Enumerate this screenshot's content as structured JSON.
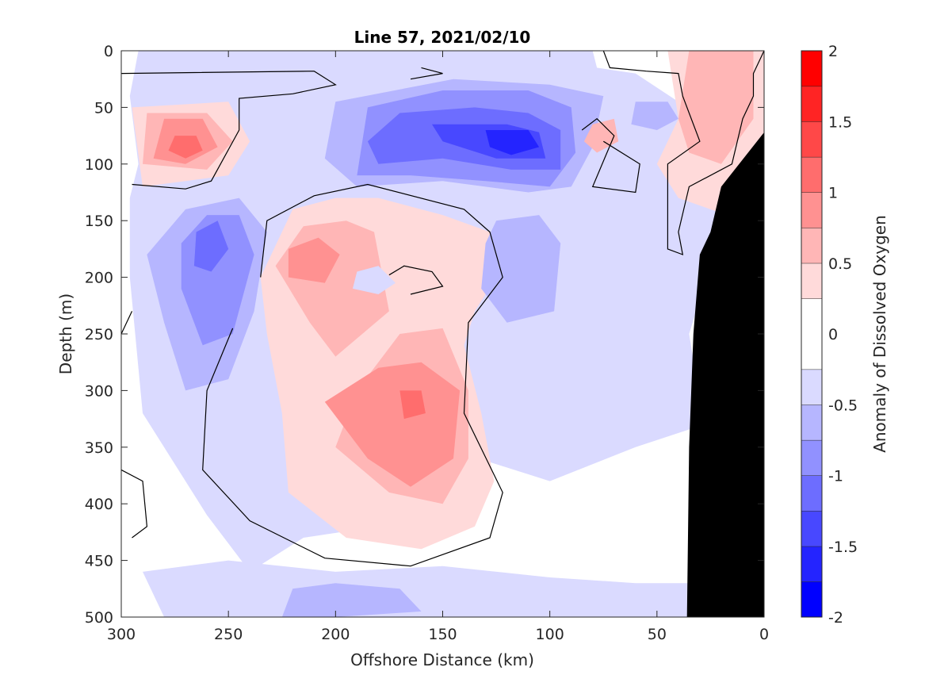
{
  "chart_data": {
    "type": "contour",
    "title": "Line 57, 2021/02/10",
    "xlabel": "Offshore Distance (km)",
    "ylabel": "Depth (m)",
    "xlim": [
      300,
      0
    ],
    "ylim": [
      500,
      0
    ],
    "x_reversed": true,
    "y_reversed": true,
    "x_ticks": [
      300,
      250,
      200,
      150,
      100,
      50,
      0
    ],
    "y_ticks": [
      0,
      50,
      100,
      150,
      200,
      250,
      300,
      350,
      400,
      450,
      500
    ],
    "colorbar": {
      "label": "Anomaly of Dissolved Oxygen",
      "range": [
        -2,
        2
      ],
      "ticks": [
        2,
        1.5,
        1,
        0.5,
        0,
        -0.5,
        -1,
        -1.5,
        -2
      ],
      "levels": [
        -2,
        -1.75,
        -1.5,
        -1.25,
        -1,
        -0.75,
        -0.5,
        -0.25,
        0.25,
        0.5,
        0.75,
        1,
        1.25,
        1.5,
        1.75,
        2
      ],
      "colors": [
        "#0000ff",
        "#2424ff",
        "#4848ff",
        "#6d6dff",
        "#9191ff",
        "#b6b6ff",
        "#dadaff",
        "#ffffff",
        "#ffdada",
        "#ffb6b6",
        "#ff9191",
        "#ff6d6d",
        "#ff4848",
        "#ff2424",
        "#ff0000"
      ]
    },
    "regions": [
      {
        "level": -0.5,
        "points": [
          [
            292,
            0
          ],
          [
            80,
            0
          ],
          [
            78,
            15
          ],
          [
            60,
            20
          ],
          [
            40,
            45
          ],
          [
            35,
            90
          ],
          [
            18,
            130
          ],
          [
            22,
            170
          ],
          [
            35,
            250
          ],
          [
            28,
            330
          ],
          [
            60,
            350
          ],
          [
            100,
            380
          ],
          [
            150,
            350
          ],
          [
            180,
            420
          ],
          [
            215,
            430
          ],
          [
            240,
            460
          ],
          [
            260,
            410
          ],
          [
            290,
            320
          ],
          [
            296,
            200
          ],
          [
            296,
            130
          ],
          [
            292,
            100
          ],
          [
            296,
            40
          ]
        ]
      },
      {
        "level": -0.5,
        "points": [
          [
            290,
            460
          ],
          [
            250,
            450
          ],
          [
            200,
            460
          ],
          [
            150,
            455
          ],
          [
            100,
            465
          ],
          [
            60,
            470
          ],
          [
            35,
            470
          ],
          [
            33,
            500
          ],
          [
            280,
            500
          ]
        ]
      },
      {
        "level": 0.25,
        "points": [
          [
            220,
            140
          ],
          [
            200,
            130
          ],
          [
            180,
            130
          ],
          [
            150,
            145
          ],
          [
            128,
            160
          ],
          [
            125,
            200
          ],
          [
            135,
            230
          ],
          [
            140,
            260
          ],
          [
            132,
            320
          ],
          [
            126,
            380
          ],
          [
            135,
            420
          ],
          [
            160,
            440
          ],
          [
            195,
            430
          ],
          [
            222,
            390
          ],
          [
            225,
            320
          ],
          [
            232,
            250
          ],
          [
            235,
            200
          ]
        ]
      },
      {
        "level": 0.25,
        "points": [
          [
            295,
            50
          ],
          [
            250,
            45
          ],
          [
            240,
            80
          ],
          [
            250,
            110
          ],
          [
            290,
            120
          ]
        ]
      },
      {
        "level": 0.25,
        "points": [
          [
            45,
            0
          ],
          [
            0,
            0
          ],
          [
            0,
            40
          ],
          [
            -5,
            120
          ],
          [
            10,
            150
          ],
          [
            40,
            130
          ],
          [
            50,
            100
          ],
          [
            40,
            60
          ]
        ]
      },
      {
        "level": 0.5,
        "points": [
          [
            215,
            155
          ],
          [
            195,
            150
          ],
          [
            182,
            160
          ],
          [
            175,
            230
          ],
          [
            200,
            270
          ],
          [
            212,
            240
          ],
          [
            228,
            190
          ]
        ]
      },
      {
        "level": 0.5,
        "points": [
          [
            190,
            300
          ],
          [
            170,
            250
          ],
          [
            150,
            245
          ],
          [
            138,
            300
          ],
          [
            138,
            360
          ],
          [
            150,
            400
          ],
          [
            175,
            390
          ],
          [
            200,
            350
          ]
        ]
      },
      {
        "level": 0.5,
        "points": [
          [
            288,
            55
          ],
          [
            260,
            55
          ],
          [
            248,
            80
          ],
          [
            260,
            105
          ],
          [
            290,
            100
          ]
        ]
      },
      {
        "level": 0.5,
        "points": [
          [
            35,
            0
          ],
          [
            5,
            0
          ],
          [
            5,
            60
          ],
          [
            20,
            100
          ],
          [
            35,
            90
          ],
          [
            40,
            60
          ]
        ]
      },
      {
        "level": 0.75,
        "points": [
          [
            205,
            310
          ],
          [
            180,
            280
          ],
          [
            160,
            275
          ],
          [
            142,
            300
          ],
          [
            145,
            360
          ],
          [
            165,
            385
          ],
          [
            185,
            360
          ]
        ]
      },
      {
        "level": 0.75,
        "points": [
          [
            280,
            60
          ],
          [
            262,
            60
          ],
          [
            255,
            85
          ],
          [
            270,
            100
          ],
          [
            285,
            95
          ]
        ]
      },
      {
        "level": 0.75,
        "points": [
          [
            222,
            175
          ],
          [
            208,
            165
          ],
          [
            198,
            180
          ],
          [
            205,
            205
          ],
          [
            222,
            200
          ]
        ]
      },
      {
        "level": 1.0,
        "points": [
          [
            275,
            75
          ],
          [
            265,
            75
          ],
          [
            262,
            88
          ],
          [
            270,
            95
          ],
          [
            278,
            88
          ]
        ]
      },
      {
        "level": 1.0,
        "points": [
          [
            170,
            300
          ],
          [
            160,
            300
          ],
          [
            158,
            320
          ],
          [
            168,
            325
          ]
        ]
      },
      {
        "level": -0.75,
        "points": [
          [
            200,
            45
          ],
          [
            145,
            25
          ],
          [
            100,
            30
          ],
          [
            75,
            40
          ],
          [
            80,
            85
          ],
          [
            90,
            120
          ],
          [
            110,
            125
          ],
          [
            150,
            115
          ],
          [
            190,
            120
          ],
          [
            205,
            95
          ]
        ]
      },
      {
        "level": -0.75,
        "points": [
          [
            270,
            140
          ],
          [
            245,
            130
          ],
          [
            232,
            160
          ],
          [
            238,
            230
          ],
          [
            250,
            290
          ],
          [
            270,
            300
          ],
          [
            280,
            240
          ],
          [
            288,
            180
          ]
        ]
      },
      {
        "level": -0.75,
        "points": [
          [
            125,
            150
          ],
          [
            105,
            145
          ],
          [
            95,
            170
          ],
          [
            98,
            230
          ],
          [
            120,
            240
          ],
          [
            132,
            210
          ],
          [
            130,
            170
          ]
        ]
      },
      {
        "level": -0.75,
        "points": [
          [
            60,
            45
          ],
          [
            45,
            45
          ],
          [
            40,
            60
          ],
          [
            50,
            70
          ],
          [
            62,
            65
          ]
        ]
      },
      {
        "level": -0.75,
        "points": [
          [
            220,
            475
          ],
          [
            200,
            470
          ],
          [
            170,
            475
          ],
          [
            160,
            495
          ],
          [
            200,
            500
          ],
          [
            225,
            500
          ]
        ]
      },
      {
        "level": -1.0,
        "points": [
          [
            185,
            50
          ],
          [
            150,
            35
          ],
          [
            110,
            35
          ],
          [
            90,
            50
          ],
          [
            88,
            90
          ],
          [
            100,
            120
          ],
          [
            130,
            115
          ],
          [
            165,
            110
          ],
          [
            190,
            110
          ]
        ]
      },
      {
        "level": -1.0,
        "points": [
          [
            260,
            145
          ],
          [
            245,
            145
          ],
          [
            238,
            180
          ],
          [
            248,
            250
          ],
          [
            262,
            260
          ],
          [
            272,
            210
          ],
          [
            272,
            170
          ]
        ]
      },
      {
        "level": -1.25,
        "points": [
          [
            170,
            55
          ],
          [
            135,
            50
          ],
          [
            110,
            55
          ],
          [
            95,
            70
          ],
          [
            95,
            105
          ],
          [
            118,
            105
          ],
          [
            150,
            95
          ],
          [
            180,
            100
          ],
          [
            185,
            80
          ]
        ]
      },
      {
        "level": -1.25,
        "points": [
          [
            265,
            160
          ],
          [
            255,
            150
          ],
          [
            250,
            175
          ],
          [
            258,
            195
          ],
          [
            266,
            190
          ]
        ]
      },
      {
        "level": -1.5,
        "points": [
          [
            155,
            65
          ],
          [
            120,
            65
          ],
          [
            105,
            72
          ],
          [
            102,
            95
          ],
          [
            125,
            95
          ],
          [
            150,
            80
          ]
        ]
      },
      {
        "level": -1.75,
        "points": [
          [
            130,
            70
          ],
          [
            110,
            70
          ],
          [
            105,
            85
          ],
          [
            118,
            92
          ],
          [
            128,
            85
          ]
        ]
      },
      {
        "level": 0.5,
        "points": [
          [
            80,
            65
          ],
          [
            70,
            60
          ],
          [
            68,
            80
          ],
          [
            78,
            90
          ],
          [
            84,
            80
          ]
        ]
      },
      {
        "level": -0.5,
        "points": [
          [
            190,
            195
          ],
          [
            180,
            190
          ],
          [
            172,
            205
          ],
          [
            180,
            215
          ],
          [
            192,
            210
          ]
        ]
      }
    ],
    "contour_lines": [
      {
        "level": 0,
        "points": [
          [
            300,
            20
          ],
          [
            210,
            18
          ],
          [
            200,
            30
          ],
          [
            220,
            38
          ],
          [
            245,
            42
          ],
          [
            245,
            70
          ],
          [
            258,
            115
          ],
          [
            270,
            122
          ],
          [
            295,
            118
          ]
        ]
      },
      {
        "level": 0,
        "points": [
          [
            235,
            200
          ],
          [
            232,
            150
          ],
          [
            210,
            128
          ],
          [
            185,
            118
          ],
          [
            140,
            140
          ],
          [
            128,
            160
          ],
          [
            122,
            200
          ],
          [
            138,
            240
          ],
          [
            140,
            320
          ],
          [
            122,
            390
          ],
          [
            128,
            430
          ],
          [
            165,
            455
          ],
          [
            205,
            448
          ],
          [
            240,
            415
          ],
          [
            262,
            370
          ],
          [
            260,
            300
          ],
          [
            248,
            245
          ]
        ]
      },
      {
        "level": 0,
        "points": [
          [
            175,
            198
          ],
          [
            168,
            190
          ],
          [
            155,
            195
          ],
          [
            150,
            208
          ],
          [
            165,
            215
          ]
        ]
      },
      {
        "level": 0,
        "points": [
          [
            160,
            15
          ],
          [
            150,
            20
          ],
          [
            165,
            25
          ]
        ]
      },
      {
        "level": 0,
        "points": [
          [
            75,
            0
          ],
          [
            72,
            15
          ],
          [
            55,
            18
          ],
          [
            40,
            20
          ],
          [
            38,
            40
          ],
          [
            30,
            80
          ],
          [
            45,
            100
          ],
          [
            45,
            175
          ],
          [
            38,
            180
          ],
          [
            40,
            160
          ],
          [
            35,
            120
          ],
          [
            15,
            100
          ],
          [
            10,
            60
          ],
          [
            5,
            40
          ],
          [
            5,
            20
          ],
          [
            0,
            0
          ]
        ]
      },
      {
        "level": 0,
        "points": [
          [
            85,
            70
          ],
          [
            78,
            60
          ],
          [
            70,
            75
          ],
          [
            80,
            120
          ],
          [
            60,
            125
          ],
          [
            58,
            100
          ],
          [
            75,
            80
          ]
        ]
      },
      {
        "level": 0,
        "points": [
          [
            295,
            230
          ],
          [
            300,
            250
          ]
        ]
      },
      {
        "level": 0,
        "points": [
          [
            300,
            370
          ],
          [
            290,
            380
          ],
          [
            288,
            420
          ],
          [
            295,
            430
          ]
        ]
      }
    ],
    "land": {
      "points": [
        [
          0,
          35
        ],
        [
          -5,
          60
        ],
        [
          20,
          120
        ],
        [
          25,
          160
        ],
        [
          30,
          180
        ],
        [
          33,
          250
        ],
        [
          35,
          350
        ],
        [
          36,
          500
        ],
        [
          0,
          500
        ]
      ]
    }
  }
}
